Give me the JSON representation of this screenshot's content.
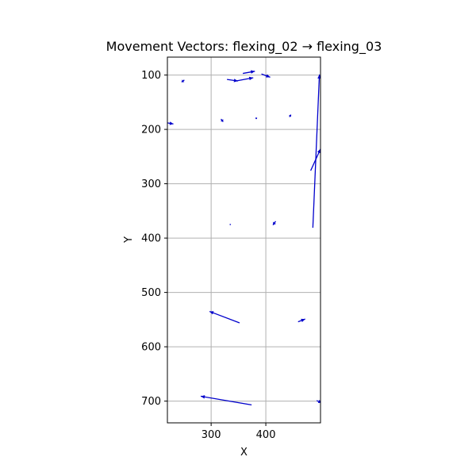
{
  "chart_data": {
    "type": "vector",
    "title": "Movement Vectors: flexing_02 → flexing_03",
    "xlabel": "X",
    "ylabel": "Y",
    "xlim": [
      220,
      500
    ],
    "ylim": [
      740,
      67
    ],
    "y_inverted": true,
    "grid": true,
    "aspect": "equal",
    "arrow_color": "#0000cc",
    "x_ticks": [
      300,
      400
    ],
    "y_ticks": [
      100,
      200,
      300,
      400,
      500,
      600,
      700
    ],
    "vectors": [
      {
        "x0": 358,
        "y0": 97,
        "x1": 380,
        "y1": 93
      },
      {
        "x0": 329,
        "y0": 108,
        "x1": 349,
        "y1": 111
      },
      {
        "x0": 345,
        "y0": 111,
        "x1": 377,
        "y1": 105
      },
      {
        "x0": 392,
        "y0": 98,
        "x1": 408,
        "y1": 104
      },
      {
        "x0": 251,
        "y0": 109,
        "x1": 246,
        "y1": 113
      },
      {
        "x0": 220,
        "y0": 188,
        "x1": 231,
        "y1": 190
      },
      {
        "x0": 318,
        "y0": 181,
        "x1": 322,
        "y1": 186
      },
      {
        "x0": 382,
        "y0": 178,
        "x1": 383,
        "y1": 181
      },
      {
        "x0": 443,
        "y0": 177,
        "x1": 446,
        "y1": 173
      },
      {
        "x0": 486,
        "y0": 381,
        "x1": 498,
        "y1": 99
      },
      {
        "x0": 482,
        "y0": 276,
        "x1": 500,
        "y1": 236
      },
      {
        "x0": 418,
        "y0": 369,
        "x1": 413,
        "y1": 376
      },
      {
        "x0": 335,
        "y0": 374,
        "x1": 335,
        "y1": 376
      },
      {
        "x0": 352,
        "y0": 556,
        "x1": 297,
        "y1": 535
      },
      {
        "x0": 459,
        "y0": 554,
        "x1": 472,
        "y1": 549
      },
      {
        "x0": 374,
        "y0": 707,
        "x1": 281,
        "y1": 691
      },
      {
        "x0": 493,
        "y0": 699,
        "x1": 502,
        "y1": 703
      }
    ]
  }
}
